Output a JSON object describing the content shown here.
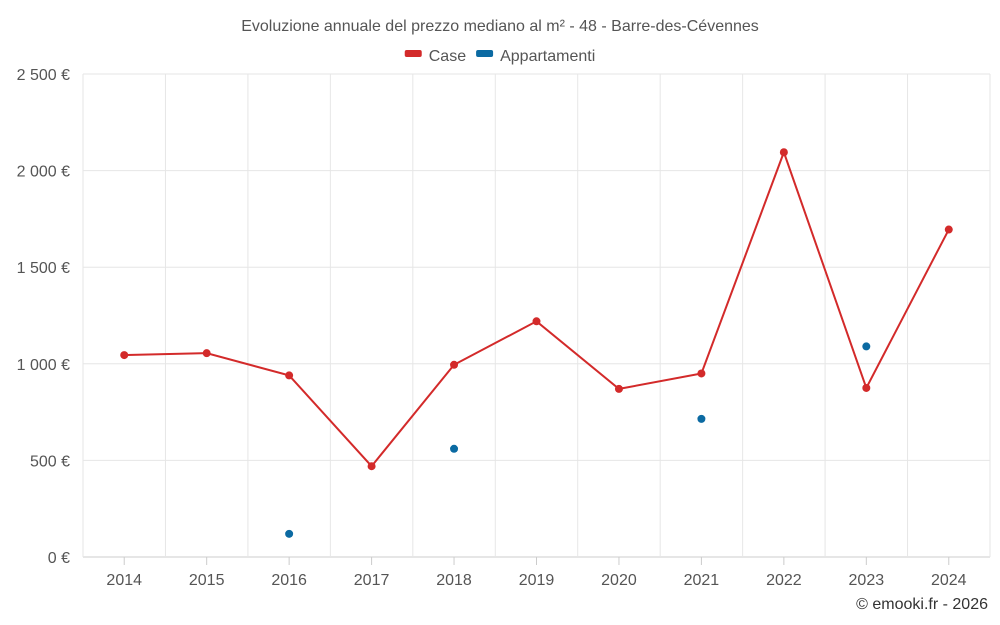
{
  "chart_data": {
    "type": "line",
    "title": "Evoluzione annuale del prezzo mediano al m² - 48 - Barre-des-Cévennes",
    "categories": [
      "2014",
      "2015",
      "2016",
      "2017",
      "2018",
      "2019",
      "2020",
      "2021",
      "2022",
      "2023",
      "2024"
    ],
    "ylim": [
      0,
      2500
    ],
    "yticks": [
      0,
      500,
      1000,
      1500,
      2000,
      2500
    ],
    "ytick_labels": [
      "0 €",
      "500 €",
      "1 000 €",
      "1 500 €",
      "2 000 €",
      "2 500 €"
    ],
    "grid": true,
    "legend_position": "top-center",
    "series": [
      {
        "name": "Case",
        "color": "#d32a2a",
        "line": true,
        "values": [
          1045,
          1055,
          940,
          470,
          995,
          1220,
          870,
          950,
          2095,
          875,
          1695
        ]
      },
      {
        "name": "Appartamenti",
        "color": "#0b6aa2",
        "line": false,
        "values": [
          null,
          null,
          120,
          null,
          560,
          null,
          null,
          715,
          null,
          1090,
          null
        ]
      }
    ],
    "credit": "© emooki.fr - 2026"
  }
}
